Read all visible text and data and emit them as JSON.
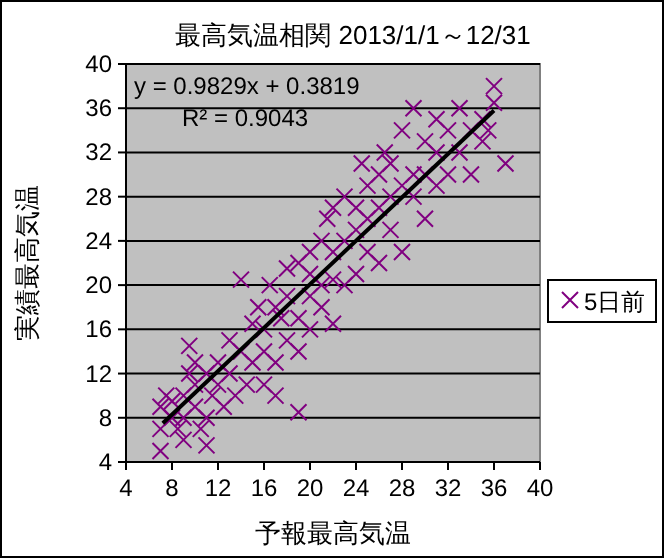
{
  "chart_data": {
    "type": "scatter",
    "title": "最高気温相関 2013/1/1～12/31",
    "xlabel": "予報最高気温",
    "ylabel": "実績最高気温",
    "annotations": [
      "y = 0.9829x + 0.3819",
      "R² = 0.9043"
    ],
    "xlim": [
      4,
      40
    ],
    "xticks": [
      4,
      8,
      12,
      16,
      20,
      24,
      28,
      32,
      36,
      40
    ],
    "ylim": [
      4,
      40
    ],
    "yticks": [
      4,
      8,
      12,
      16,
      20,
      24,
      28,
      32,
      36,
      40
    ],
    "grid": "y",
    "legend": "right",
    "series": [
      {
        "name": "5日前",
        "color": "#800080",
        "marker": "cross",
        "x": [
          7,
          7,
          7,
          7.5,
          8,
          8,
          8.5,
          9,
          9,
          9,
          9.5,
          9.5,
          10,
          10,
          10,
          10.5,
          11,
          11,
          11,
          11.5,
          12,
          12,
          12.5,
          13,
          13,
          13.5,
          14,
          14,
          14.5,
          15,
          15,
          15.5,
          16,
          16,
          16,
          16.5,
          17,
          17,
          17,
          17.5,
          18,
          18,
          18,
          19,
          19,
          19,
          19,
          20,
          20,
          20,
          20,
          21,
          21,
          21,
          21.5,
          22,
          22,
          22,
          22,
          23,
          23,
          23,
          24,
          24,
          24,
          24.5,
          25,
          25,
          25,
          26,
          26,
          26,
          26.5,
          27,
          27,
          27,
          28,
          28,
          28,
          29,
          29,
          29,
          30,
          30,
          30,
          31,
          31,
          31,
          32,
          32,
          33,
          33,
          34,
          34,
          35,
          35,
          36,
          36,
          37,
          35.5
        ],
        "values": [
          5,
          7,
          9,
          10,
          8,
          9.5,
          7,
          6,
          8,
          10,
          12,
          14.5,
          9,
          11,
          13,
          7,
          5.5,
          8,
          12,
          10,
          11,
          13,
          9,
          12,
          15,
          10,
          14,
          20.5,
          11,
          13,
          16.5,
          18,
          11,
          14,
          16,
          20,
          10,
          13,
          18,
          17,
          15,
          19,
          21.5,
          8.5,
          14,
          17,
          22,
          16,
          19,
          21,
          23,
          18,
          20,
          24,
          26,
          16.5,
          20.5,
          23,
          27,
          20,
          24,
          28,
          21,
          25,
          27,
          31,
          23,
          26,
          29,
          22,
          27,
          30,
          32,
          25,
          28,
          31,
          23,
          29,
          34,
          28,
          30,
          36,
          26,
          30,
          33,
          29,
          32,
          35,
          30,
          34,
          32,
          36,
          30,
          34,
          33,
          35,
          38,
          36.5,
          31,
          34
        ]
      },
      {
        "type": "line",
        "color": "#000000",
        "x": [
          7.2,
          36
        ],
        "values": [
          7.5,
          35.8
        ]
      }
    ]
  }
}
